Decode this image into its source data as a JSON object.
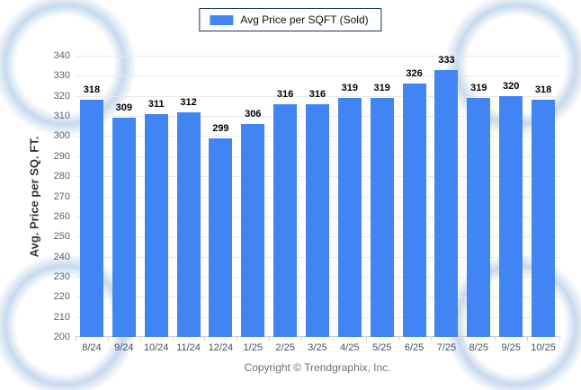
{
  "legend": {
    "label": "Avg Price per SQFT (Sold)",
    "swatch_color": "#4184F3"
  },
  "footer": {
    "copyright": "Copyright © Trendgraphix, Inc."
  },
  "chart_data": {
    "type": "bar",
    "title": "",
    "categories": [
      "8/24",
      "9/24",
      "10/24",
      "11/24",
      "12/24",
      "1/25",
      "2/25",
      "3/25",
      "4/25",
      "5/25",
      "6/25",
      "7/25",
      "8/25",
      "9/25",
      "10/25"
    ],
    "series": [
      {
        "name": "Avg Price per SQFT (Sold)",
        "values": [
          318,
          309,
          311,
          312,
          299,
          306,
          316,
          316,
          319,
          319,
          326,
          333,
          319,
          320,
          318
        ]
      }
    ],
    "xlabel": "",
    "ylabel": "Avg. Price per SQ. FT.",
    "ylim": [
      200,
      340
    ],
    "ytick_step": 10,
    "bar_color": "#4184F3",
    "grid": "horizontal",
    "legend_position": "top-center",
    "value_labels": true
  }
}
